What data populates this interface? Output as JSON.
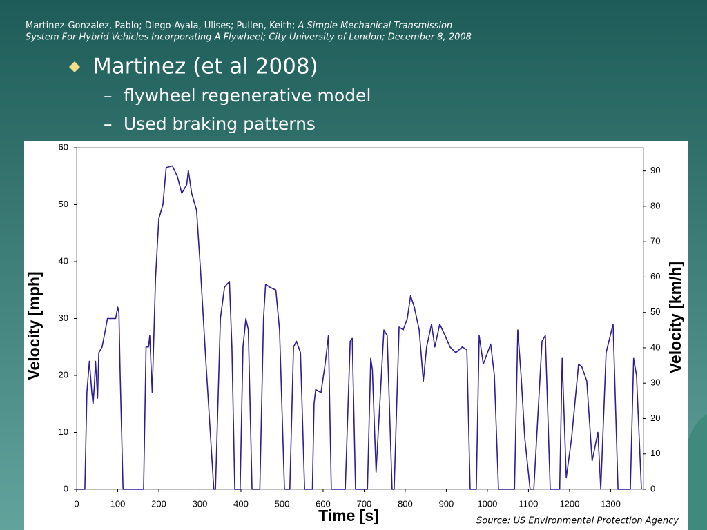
{
  "slide": {
    "citation": {
      "authors": "Martinez-Gonzalez, Pablo; Diego-Ayala, Ulises; Pullen, Keith; ",
      "title_line1": "A Simple Mechanical Transmission",
      "title_line2": "System For Hybrid Vehicles Incorporating A Flywheel; City University of London; December 8, 2008"
    },
    "bullet": "Martinez (et al 2008)",
    "sub_bullets": [
      "flywheel regenerative model",
      "Used braking patterns"
    ]
  },
  "chart_data": {
    "type": "line",
    "x_label": "Time [s]",
    "y_label": "Velocity [mph]",
    "y2_label": "Velocity [km/h]",
    "source": "Source: US Environmental Protection Agency",
    "x": [
      0,
      20,
      25,
      31,
      37,
      40,
      43,
      46,
      51,
      54,
      62,
      70,
      75,
      85,
      95,
      100,
      103,
      106,
      113,
      163,
      169,
      175,
      178,
      184,
      192,
      200,
      210,
      218,
      233,
      245,
      256,
      268,
      272,
      280,
      292,
      302,
      315,
      334,
      338,
      350,
      360,
      372,
      378,
      385,
      398,
      405,
      412,
      418,
      427,
      446,
      455,
      460,
      470,
      485,
      494,
      506,
      519,
      528,
      535,
      545,
      555,
      574,
      578,
      582,
      595,
      605,
      613,
      620,
      654,
      666,
      671,
      679,
      708,
      716,
      720,
      729,
      748,
      756,
      768,
      773,
      785,
      795,
      805,
      813,
      822,
      834,
      844,
      852,
      864,
      872,
      884,
      897,
      909,
      923,
      939,
      950,
      958,
      973,
      980,
      990,
      1008,
      1017,
      1027,
      1066,
      1074,
      1082,
      1091,
      1104,
      1113,
      1133,
      1141,
      1153,
      1176,
      1182,
      1192,
      1205,
      1222,
      1230,
      1242,
      1255,
      1269,
      1276,
      1289,
      1306,
      1318,
      1348,
      1356,
      1363,
      1375
    ],
    "series": [
      {
        "color": "#2e1e96",
        "values": [
          0,
          0,
          17,
          22.5,
          17,
          15,
          18,
          22.5,
          16,
          24,
          25,
          28,
          30,
          30,
          30,
          32,
          31,
          20,
          0,
          0,
          25,
          25,
          27,
          17,
          37,
          47.5,
          50,
          56.5,
          56.8,
          55,
          52,
          53.5,
          56,
          52,
          49,
          38,
          22,
          0,
          0,
          30,
          35.5,
          36.5,
          25,
          0,
          0,
          25,
          30,
          28,
          0,
          0,
          30,
          36,
          35.5,
          35,
          28,
          0,
          0,
          25,
          26,
          24,
          0,
          0,
          15,
          17.5,
          17,
          22,
          27,
          0,
          0,
          26,
          26.5,
          0,
          0,
          23,
          21,
          3,
          28,
          27,
          0,
          0,
          28.5,
          28,
          30,
          34,
          32,
          28,
          19,
          25,
          29,
          25,
          29,
          27,
          25,
          24,
          25,
          24.5,
          0,
          0,
          27,
          22,
          25.5,
          20,
          0,
          0,
          28,
          20,
          9,
          0,
          0,
          26,
          27,
          0,
          0,
          23,
          2,
          9,
          22,
          21.5,
          19,
          5,
          10,
          0,
          24,
          29,
          0,
          0,
          23,
          20,
          0
        ]
      }
    ],
    "xlim": [
      0,
      1380
    ],
    "xticks": [
      0,
      100,
      200,
      300,
      400,
      500,
      600,
      700,
      800,
      900,
      1000,
      1100,
      1200,
      1300
    ],
    "ylim": [
      0,
      60
    ],
    "yticks": [
      0,
      10,
      20,
      30,
      40,
      50,
      60
    ],
    "y2lim": [
      0,
      96.56
    ],
    "y2ticks": [
      0,
      10,
      20,
      30,
      40,
      50,
      60,
      70,
      80,
      90
    ],
    "grid": false
  }
}
